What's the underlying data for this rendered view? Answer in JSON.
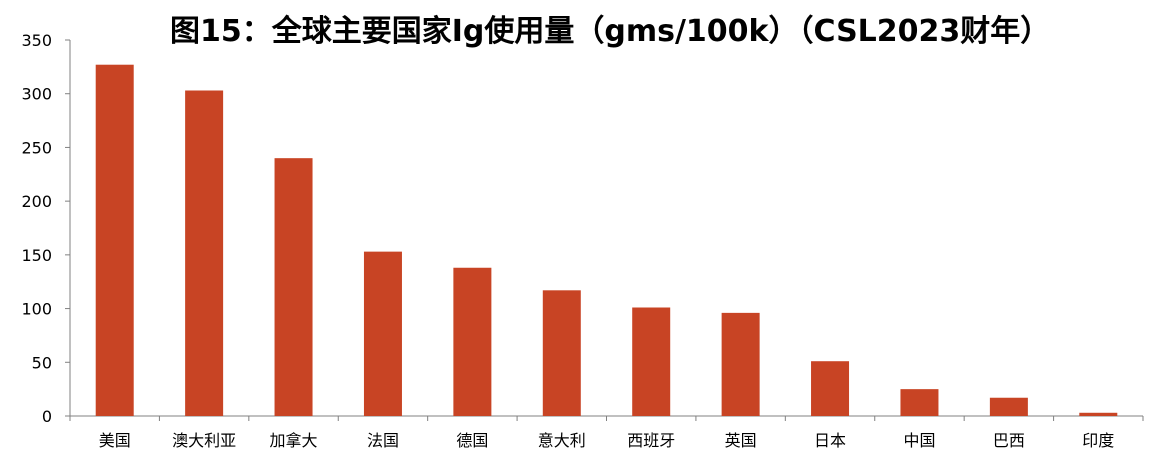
{
  "chart_data": {
    "type": "bar",
    "title": "图15：全球主要国家Ig使用量（gms/100k）（CSL2023财年）",
    "xlabel": "",
    "ylabel": "",
    "ylim": [
      0,
      350
    ],
    "yticks": [
      0,
      50,
      100,
      150,
      200,
      250,
      300,
      350
    ],
    "categories": [
      "美国",
      "澳大利亚",
      "加拿大",
      "法国",
      "德国",
      "意大利",
      "西班牙",
      "英国",
      "日本",
      "中国",
      "巴西",
      "印度"
    ],
    "values": [
      327,
      303,
      240,
      153,
      138,
      117,
      101,
      96,
      51,
      25,
      17,
      3
    ],
    "bar_color": "#c84424",
    "grid": false,
    "legend": "none"
  }
}
